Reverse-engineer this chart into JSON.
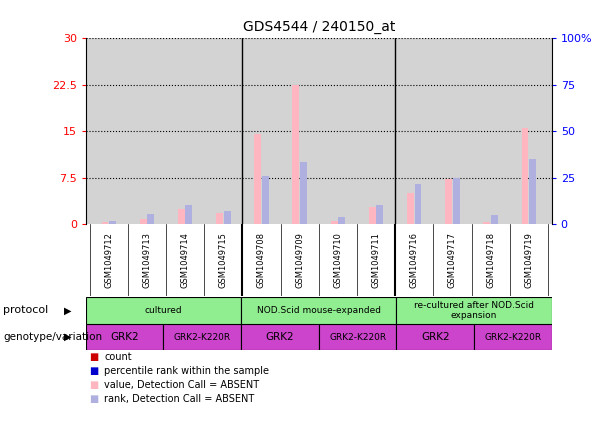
{
  "title": "GDS4544 / 240150_at",
  "samples": [
    "GSM1049712",
    "GSM1049713",
    "GSM1049714",
    "GSM1049715",
    "GSM1049708",
    "GSM1049709",
    "GSM1049710",
    "GSM1049711",
    "GSM1049716",
    "GSM1049717",
    "GSM1049718",
    "GSM1049719"
  ],
  "value_absent": [
    0.3,
    0.8,
    2.5,
    1.8,
    14.5,
    22.5,
    0.5,
    2.8,
    5.0,
    7.3,
    0.3,
    15.5
  ],
  "rank_absent_pct": [
    1.5,
    5.5,
    10.5,
    7.0,
    26.0,
    33.5,
    4.0,
    10.5,
    21.5,
    25.0,
    5.0,
    35.0
  ],
  "ylim_left": [
    0,
    30
  ],
  "ylim_right": [
    0,
    100
  ],
  "yticks_left": [
    0,
    7.5,
    15,
    22.5,
    30
  ],
  "yticks_right": [
    0,
    25,
    50,
    75,
    100
  ],
  "ytick_labels_left": [
    "0",
    "7.5",
    "15",
    "22.5",
    "30"
  ],
  "ytick_labels_right": [
    "0",
    "25",
    "50",
    "75",
    "100%"
  ],
  "bar_width": 0.18,
  "pink_color": "#FFB6C1",
  "lavender_color": "#B0B0E0",
  "red_color": "#CC0000",
  "blue_color": "#0000CC",
  "axis_bg": "#D3D3D3",
  "white_bg": "#FFFFFF",
  "green_light": "#90EE90",
  "green_medium": "#3CB371",
  "magenta": "#CC44CC",
  "proto_spans": [
    [
      0,
      4,
      "cultured"
    ],
    [
      4,
      8,
      "NOD.Scid mouse-expanded"
    ],
    [
      8,
      12,
      "re-cultured after NOD.Scid\nexpansion"
    ]
  ],
  "geno_spans": [
    [
      0,
      2,
      "GRK2"
    ],
    [
      2,
      4,
      "GRK2-K220R"
    ],
    [
      4,
      6,
      "GRK2"
    ],
    [
      6,
      8,
      "GRK2-K220R"
    ],
    [
      8,
      10,
      "GRK2"
    ],
    [
      10,
      12,
      "GRK2-K220R"
    ]
  ],
  "group_sep": [
    4,
    8
  ],
  "figsize": [
    6.13,
    4.23
  ],
  "dpi": 100
}
